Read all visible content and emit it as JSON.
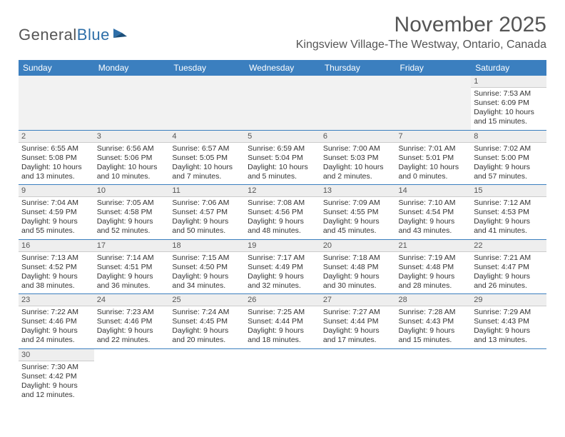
{
  "logo": {
    "word1": "General",
    "word2": "Blue"
  },
  "title": "November 2025",
  "location": "Kingsview Village-The Westway, Ontario, Canada",
  "colors": {
    "header_bg": "#3b7fbf",
    "header_text": "#ffffff",
    "daynum_bg": "#eeeeee",
    "border": "#3b7fbf",
    "logo_blue": "#2d6ea8",
    "text": "#333333"
  },
  "dayNames": [
    "Sunday",
    "Monday",
    "Tuesday",
    "Wednesday",
    "Thursday",
    "Friday",
    "Saturday"
  ],
  "weeks": [
    [
      null,
      null,
      null,
      null,
      null,
      null,
      {
        "n": "1",
        "sr": "7:53 AM",
        "ss": "6:09 PM",
        "dl": "10 hours and 15 minutes."
      }
    ],
    [
      {
        "n": "2",
        "sr": "6:55 AM",
        "ss": "5:08 PM",
        "dl": "10 hours and 13 minutes."
      },
      {
        "n": "3",
        "sr": "6:56 AM",
        "ss": "5:06 PM",
        "dl": "10 hours and 10 minutes."
      },
      {
        "n": "4",
        "sr": "6:57 AM",
        "ss": "5:05 PM",
        "dl": "10 hours and 7 minutes."
      },
      {
        "n": "5",
        "sr": "6:59 AM",
        "ss": "5:04 PM",
        "dl": "10 hours and 5 minutes."
      },
      {
        "n": "6",
        "sr": "7:00 AM",
        "ss": "5:03 PM",
        "dl": "10 hours and 2 minutes."
      },
      {
        "n": "7",
        "sr": "7:01 AM",
        "ss": "5:01 PM",
        "dl": "10 hours and 0 minutes."
      },
      {
        "n": "8",
        "sr": "7:02 AM",
        "ss": "5:00 PM",
        "dl": "9 hours and 57 minutes."
      }
    ],
    [
      {
        "n": "9",
        "sr": "7:04 AM",
        "ss": "4:59 PM",
        "dl": "9 hours and 55 minutes."
      },
      {
        "n": "10",
        "sr": "7:05 AM",
        "ss": "4:58 PM",
        "dl": "9 hours and 52 minutes."
      },
      {
        "n": "11",
        "sr": "7:06 AM",
        "ss": "4:57 PM",
        "dl": "9 hours and 50 minutes."
      },
      {
        "n": "12",
        "sr": "7:08 AM",
        "ss": "4:56 PM",
        "dl": "9 hours and 48 minutes."
      },
      {
        "n": "13",
        "sr": "7:09 AM",
        "ss": "4:55 PM",
        "dl": "9 hours and 45 minutes."
      },
      {
        "n": "14",
        "sr": "7:10 AM",
        "ss": "4:54 PM",
        "dl": "9 hours and 43 minutes."
      },
      {
        "n": "15",
        "sr": "7:12 AM",
        "ss": "4:53 PM",
        "dl": "9 hours and 41 minutes."
      }
    ],
    [
      {
        "n": "16",
        "sr": "7:13 AM",
        "ss": "4:52 PM",
        "dl": "9 hours and 38 minutes."
      },
      {
        "n": "17",
        "sr": "7:14 AM",
        "ss": "4:51 PM",
        "dl": "9 hours and 36 minutes."
      },
      {
        "n": "18",
        "sr": "7:15 AM",
        "ss": "4:50 PM",
        "dl": "9 hours and 34 minutes."
      },
      {
        "n": "19",
        "sr": "7:17 AM",
        "ss": "4:49 PM",
        "dl": "9 hours and 32 minutes."
      },
      {
        "n": "20",
        "sr": "7:18 AM",
        "ss": "4:48 PM",
        "dl": "9 hours and 30 minutes."
      },
      {
        "n": "21",
        "sr": "7:19 AM",
        "ss": "4:48 PM",
        "dl": "9 hours and 28 minutes."
      },
      {
        "n": "22",
        "sr": "7:21 AM",
        "ss": "4:47 PM",
        "dl": "9 hours and 26 minutes."
      }
    ],
    [
      {
        "n": "23",
        "sr": "7:22 AM",
        "ss": "4:46 PM",
        "dl": "9 hours and 24 minutes."
      },
      {
        "n": "24",
        "sr": "7:23 AM",
        "ss": "4:46 PM",
        "dl": "9 hours and 22 minutes."
      },
      {
        "n": "25",
        "sr": "7:24 AM",
        "ss": "4:45 PM",
        "dl": "9 hours and 20 minutes."
      },
      {
        "n": "26",
        "sr": "7:25 AM",
        "ss": "4:44 PM",
        "dl": "9 hours and 18 minutes."
      },
      {
        "n": "27",
        "sr": "7:27 AM",
        "ss": "4:44 PM",
        "dl": "9 hours and 17 minutes."
      },
      {
        "n": "28",
        "sr": "7:28 AM",
        "ss": "4:43 PM",
        "dl": "9 hours and 15 minutes."
      },
      {
        "n": "29",
        "sr": "7:29 AM",
        "ss": "4:43 PM",
        "dl": "9 hours and 13 minutes."
      }
    ],
    [
      {
        "n": "30",
        "sr": "7:30 AM",
        "ss": "4:42 PM",
        "dl": "9 hours and 12 minutes."
      },
      null,
      null,
      null,
      null,
      null,
      null
    ]
  ],
  "labels": {
    "sunrise": "Sunrise:",
    "sunset": "Sunset:",
    "daylight": "Daylight:"
  }
}
